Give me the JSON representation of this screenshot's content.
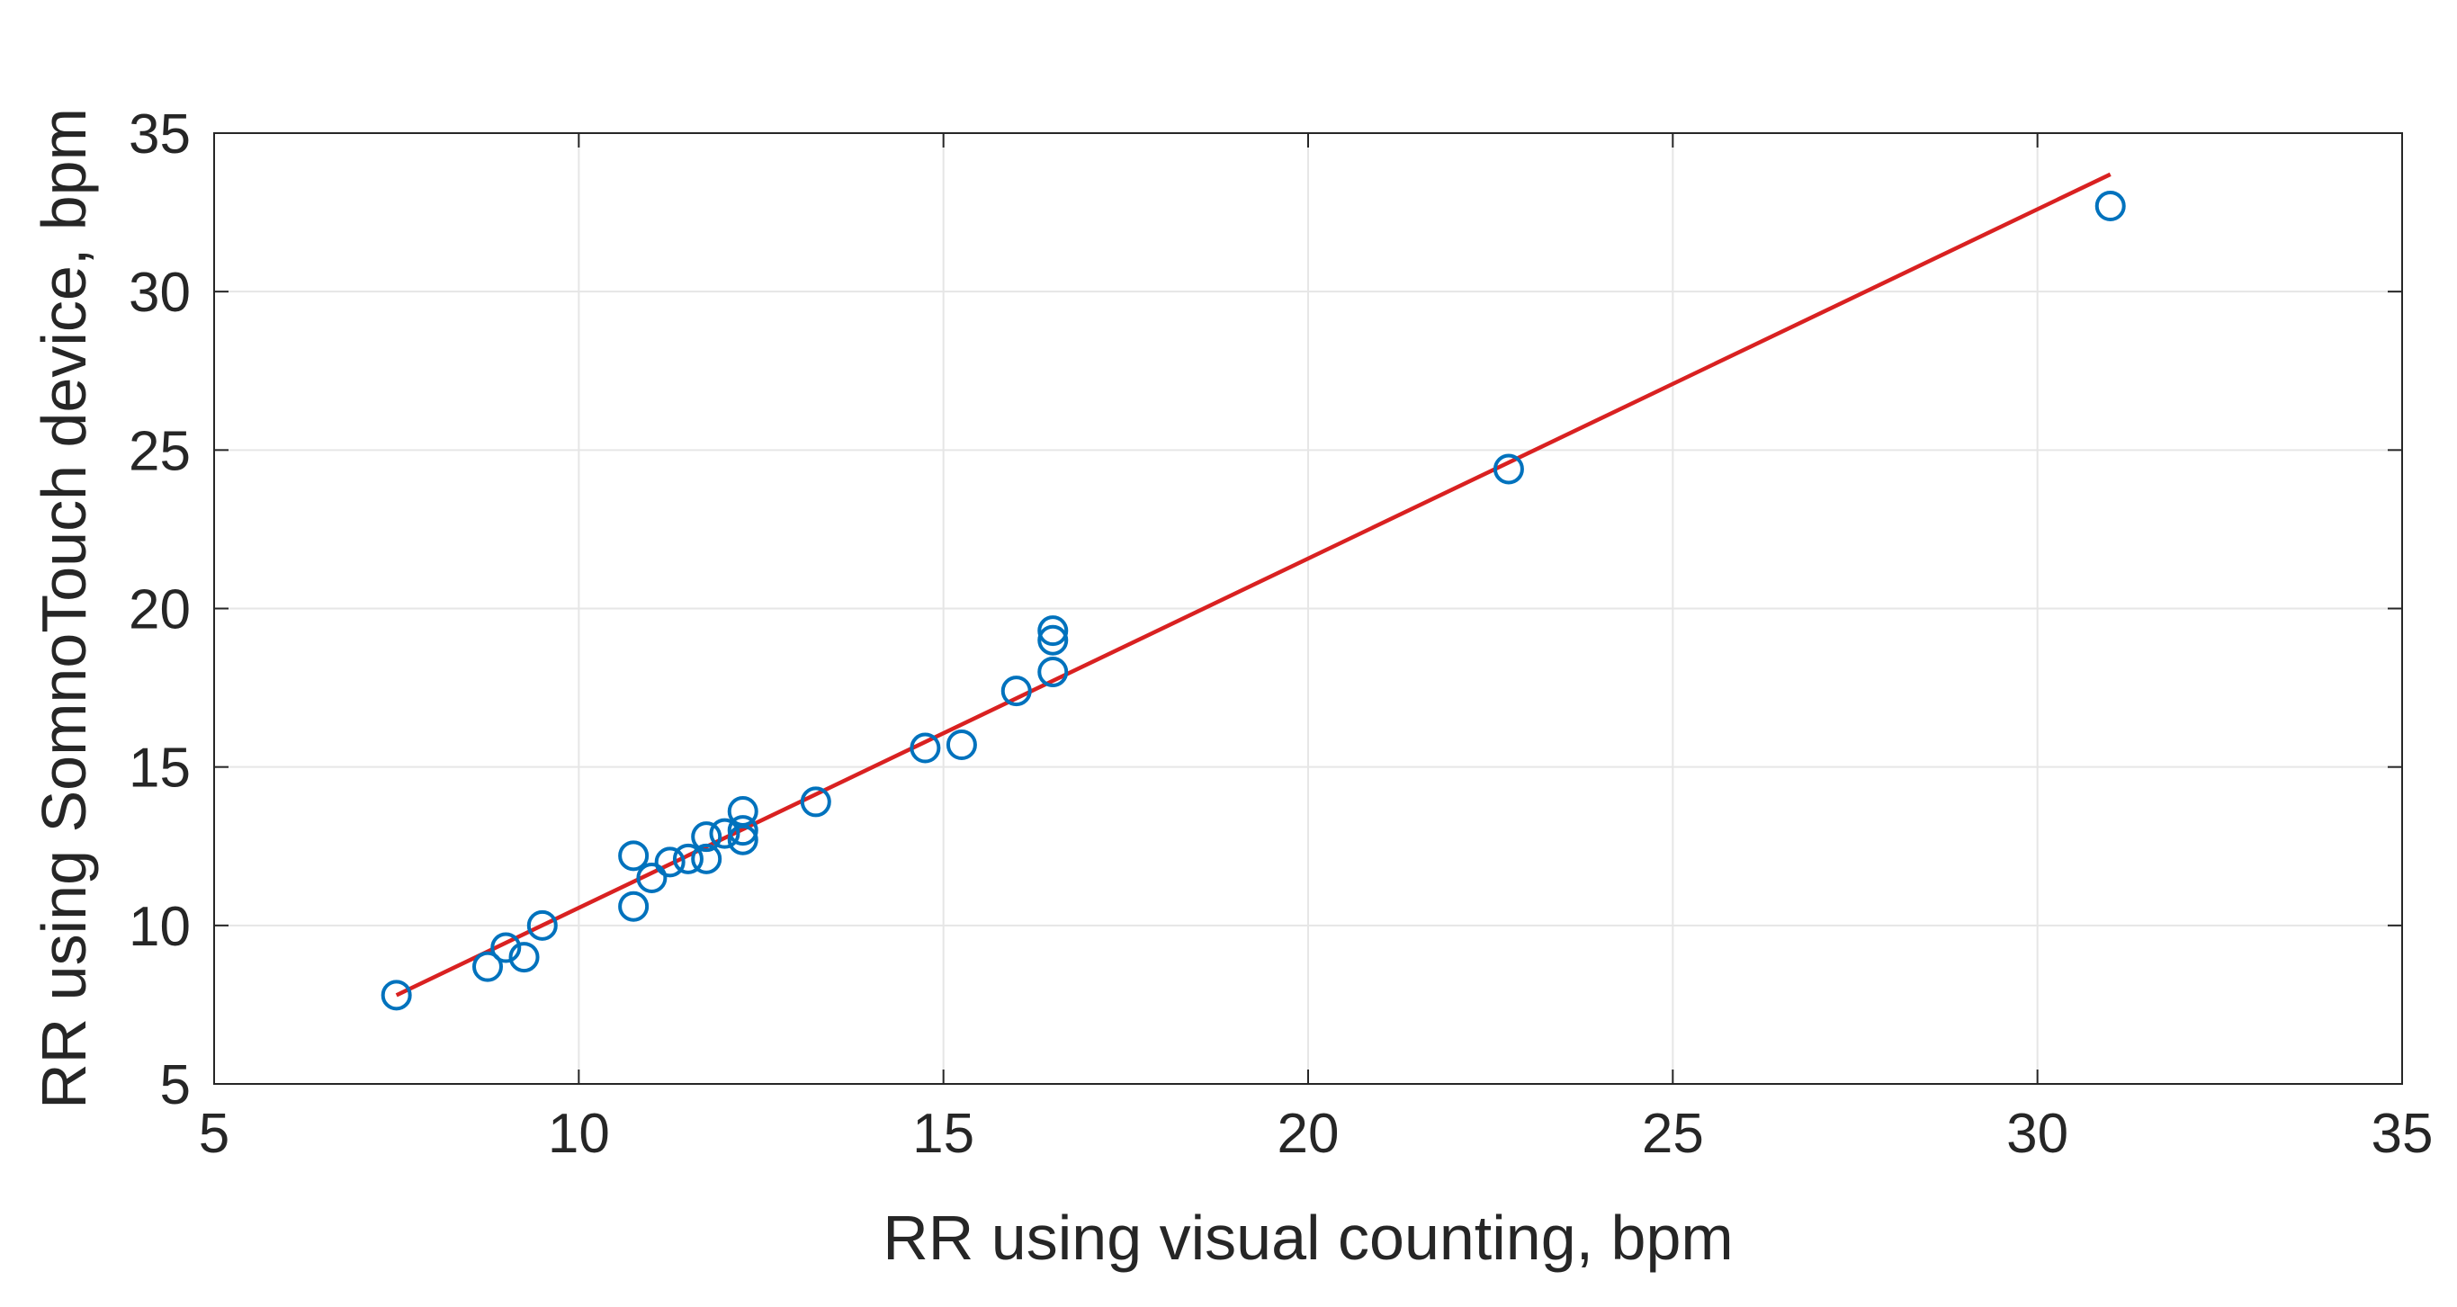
{
  "chart_data": {
    "type": "scatter",
    "title": "",
    "xlabel": "RR using visual counting, bpm",
    "ylabel": "RR using SomnoTouch device, bpm",
    "xlim": [
      5,
      35
    ],
    "ylim": [
      5,
      35
    ],
    "xticks": [
      "5",
      "10",
      "15",
      "20",
      "25",
      "30",
      "35"
    ],
    "yticks": [
      "5",
      "10",
      "15",
      "20",
      "25",
      "30",
      "35"
    ],
    "grid": true,
    "legend": "none",
    "colors": {
      "points": "#0072BD",
      "fit_line": "#D92121",
      "grid": "#e6e6e6",
      "axes": "#262626"
    },
    "series": [
      {
        "marker": "circle-open",
        "points": [
          [
            7.5,
            7.8
          ],
          [
            8.75,
            8.7
          ],
          [
            9.0,
            9.3
          ],
          [
            9.25,
            9.0
          ],
          [
            9.5,
            10.0
          ],
          [
            10.75,
            10.6
          ],
          [
            10.75,
            12.2
          ],
          [
            11.0,
            11.5
          ],
          [
            11.25,
            12.0
          ],
          [
            11.5,
            12.1
          ],
          [
            11.75,
            12.8
          ],
          [
            11.75,
            12.1
          ],
          [
            12.0,
            12.9
          ],
          [
            12.25,
            13.6
          ],
          [
            12.25,
            13.0
          ],
          [
            12.25,
            12.7
          ],
          [
            13.25,
            13.9
          ],
          [
            14.75,
            15.6
          ],
          [
            15.25,
            15.7
          ],
          [
            16.0,
            17.4
          ],
          [
            16.5,
            18.0
          ],
          [
            16.5,
            19.0
          ],
          [
            16.5,
            19.3
          ],
          [
            22.75,
            24.4
          ],
          [
            31.0,
            32.7
          ]
        ]
      },
      {
        "type": "line",
        "points": [
          [
            7.5,
            7.8
          ],
          [
            31.0,
            33.7
          ]
        ]
      }
    ]
  }
}
